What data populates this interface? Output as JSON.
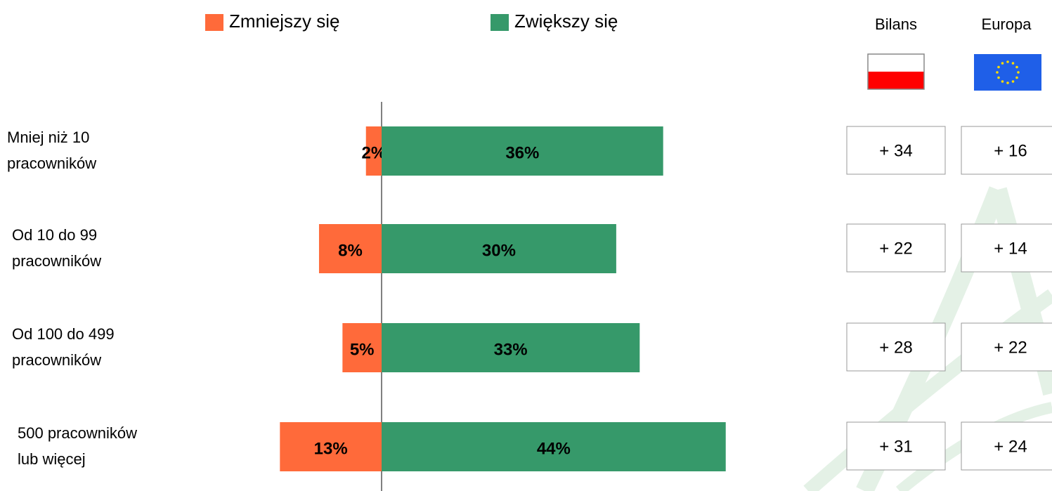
{
  "chart_data": {
    "type": "diverging-bar",
    "categories": [
      "Mniej niż 10\npracowników",
      "Od 10 do 99\npracowników",
      "Od 100 do 499\npracowników",
      "500 pracowników\nlub więcej"
    ],
    "series": [
      {
        "name": "Zmniejszy się",
        "color": "#ff6a3a",
        "values": [
          2,
          8,
          5,
          13
        ],
        "value_labels": [
          "2%",
          "8%",
          "5%",
          "13%"
        ]
      },
      {
        "name": "Zwiększy się",
        "color": "#36996a",
        "values": [
          36,
          30,
          33,
          44
        ],
        "value_labels": [
          "36%",
          "30%",
          "33%",
          "44%"
        ]
      }
    ]
  },
  "table": {
    "columns": [
      {
        "header": "Bilans",
        "cells": [
          "+ 34",
          "+ 22",
          "+ 28",
          "+ 31"
        ]
      },
      {
        "header": "Europa",
        "cells": [
          "+ 16",
          "+ 14",
          "+ 22",
          "+ 24"
        ]
      }
    ]
  }
}
